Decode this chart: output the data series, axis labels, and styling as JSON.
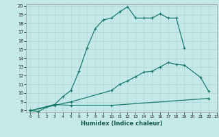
{
  "xlabel": "Humidex (Indice chaleur)",
  "xlim": [
    -0.5,
    23
  ],
  "ylim": [
    7.8,
    20.2
  ],
  "xticks": [
    0,
    1,
    2,
    3,
    4,
    5,
    6,
    7,
    8,
    9,
    10,
    11,
    12,
    13,
    14,
    15,
    16,
    17,
    18,
    19,
    20,
    21,
    22,
    23
  ],
  "yticks": [
    8,
    9,
    10,
    11,
    12,
    13,
    14,
    15,
    16,
    17,
    18,
    19,
    20
  ],
  "bg_color": "#c5e8e8",
  "line_color": "#1a7a6e",
  "grid_color": "#b0d8d8",
  "line1_x": [
    0,
    1,
    2,
    3,
    4,
    5,
    6,
    7,
    8,
    9,
    10,
    11,
    12,
    13,
    14,
    15,
    16,
    17,
    18,
    19
  ],
  "line1_y": [
    8.0,
    7.9,
    8.4,
    8.7,
    9.6,
    10.3,
    12.5,
    15.2,
    17.4,
    18.4,
    18.6,
    19.3,
    19.9,
    18.6,
    18.6,
    18.6,
    19.1,
    18.6,
    18.6,
    15.2
  ],
  "line2_x": [
    0,
    3,
    5,
    10,
    11,
    12,
    13,
    14,
    15,
    16,
    17,
    18,
    19,
    21,
    22
  ],
  "line2_y": [
    8.0,
    8.6,
    9.0,
    10.3,
    11.0,
    11.4,
    11.9,
    12.4,
    12.5,
    13.0,
    13.5,
    13.3,
    13.2,
    11.8,
    10.2
  ],
  "line3_x": [
    0,
    3,
    5,
    10,
    22
  ],
  "line3_y": [
    8.0,
    8.7,
    8.6,
    8.6,
    9.4
  ]
}
